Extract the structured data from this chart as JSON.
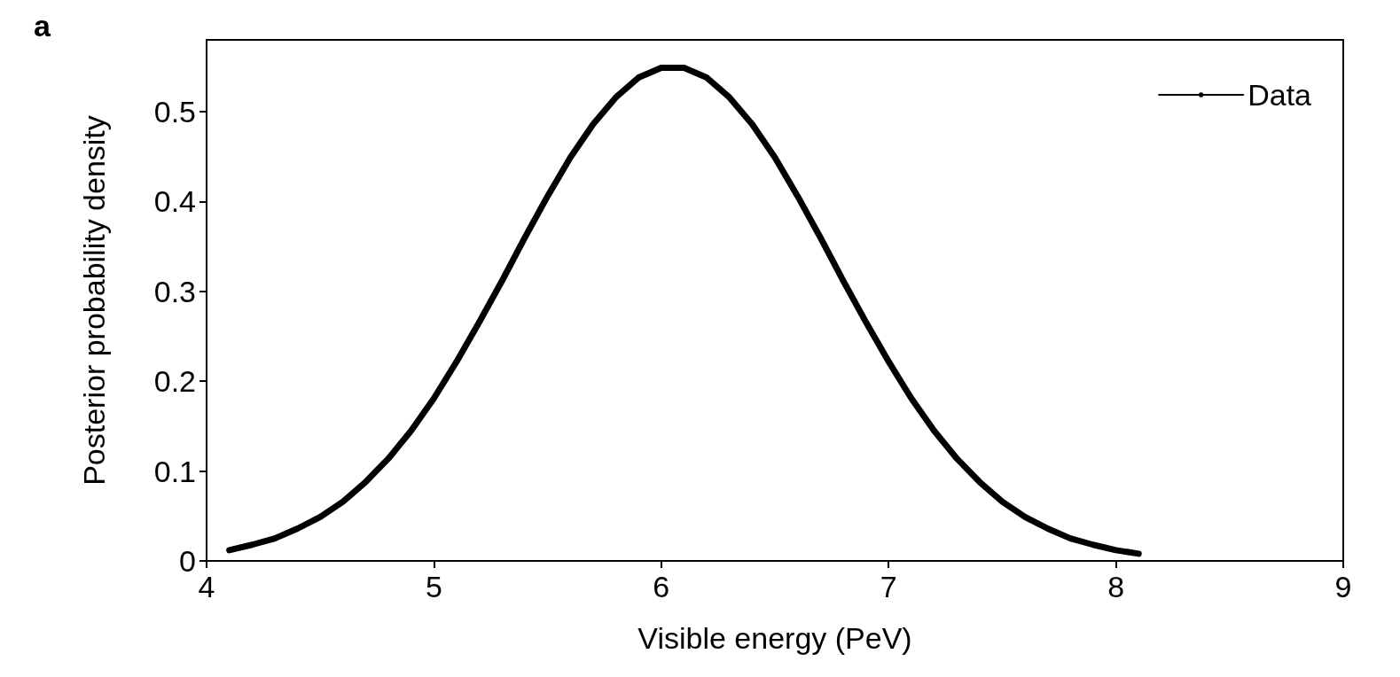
{
  "chart_data": {
    "type": "line",
    "xlabel": "Visible energy (PeV)",
    "ylabel": "Posterior probability density",
    "annotations": [
      "a"
    ],
    "xlim": [
      4,
      9
    ],
    "xticks": [
      4,
      5,
      6,
      7,
      8,
      9
    ],
    "ylim": [
      0,
      0.58
    ],
    "yticks": [
      0,
      0.1,
      0.2,
      0.3,
      0.4,
      0.5
    ],
    "grid": false,
    "legend": "top right",
    "marker": "none",
    "line_style": "solid",
    "series": [
      {
        "name": "Data",
        "color": "#000000",
        "x": [
          4.1,
          4.2,
          4.3,
          4.4,
          4.5,
          4.6,
          4.7,
          4.8,
          4.9,
          5.0,
          5.1,
          5.2,
          5.3,
          5.4,
          5.5,
          5.6,
          5.7,
          5.8,
          5.9,
          6.0,
          6.1,
          6.2,
          6.3,
          6.4,
          6.5,
          6.6,
          6.7,
          6.8,
          6.9,
          7.0,
          7.1,
          7.2,
          7.3,
          7.4,
          7.5,
          7.6,
          7.7,
          7.8,
          7.9,
          8.0,
          8.1
        ],
        "values": [
          0.012,
          0.018,
          0.025,
          0.036,
          0.049,
          0.066,
          0.088,
          0.114,
          0.145,
          0.181,
          0.222,
          0.266,
          0.312,
          0.36,
          0.406,
          0.449,
          0.486,
          0.516,
          0.538,
          0.549,
          0.549,
          0.538,
          0.516,
          0.486,
          0.449,
          0.406,
          0.36,
          0.312,
          0.266,
          0.222,
          0.181,
          0.145,
          0.114,
          0.088,
          0.066,
          0.049,
          0.036,
          0.025,
          0.018,
          0.012,
          0.008
        ]
      }
    ]
  }
}
